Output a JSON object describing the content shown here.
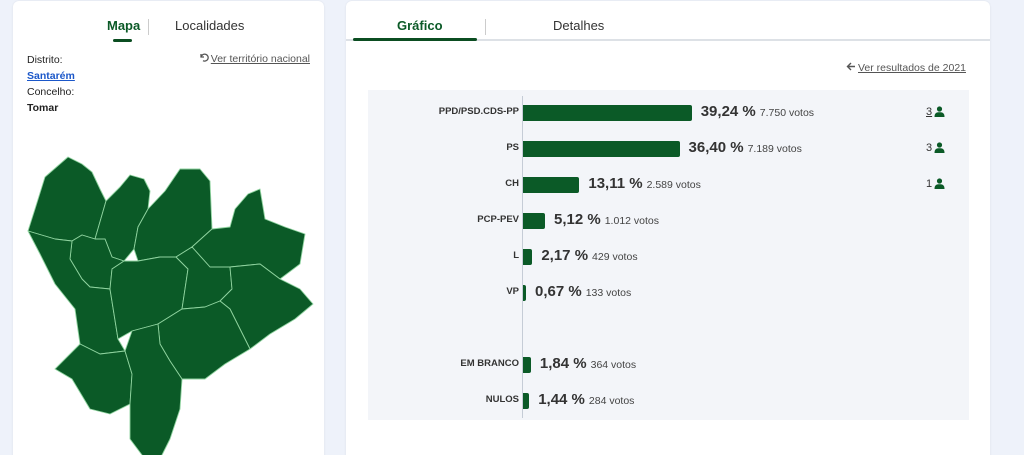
{
  "left_panel": {
    "tabs": [
      {
        "label": "Mapa",
        "active": true
      },
      {
        "label": "Localidades",
        "active": false
      }
    ],
    "info": {
      "district_label": "Distrito:",
      "district_value": "Santarém",
      "municipality_label": "Concelho:",
      "municipality_value": "Tomar"
    },
    "national_link": {
      "icon": "undo-icon",
      "label": "Ver território nacional"
    },
    "map": {
      "fill": "#0b5a27",
      "border": "#8fd39f",
      "region": "Tomar"
    }
  },
  "right_panel": {
    "tabs": [
      {
        "label": "Gráfico",
        "active": true
      },
      {
        "label": "Detalhes",
        "active": false
      }
    ],
    "back_link": {
      "icon": "arrow-left-icon",
      "label": "Ver resultados de 2021"
    },
    "colors": {
      "bar": "#0b5a27",
      "accent": "#0b4d21",
      "chart_bg": "#f3f5f9"
    }
  },
  "chart_data": {
    "type": "bar",
    "orientation": "horizontal",
    "categories": [
      "PPD/PSD.CDS-PP",
      "PS",
      "CH",
      "PCP-PEV",
      "L",
      "VP",
      "EM BRANCO",
      "NULOS"
    ],
    "values": [
      39.24,
      36.4,
      13.11,
      5.12,
      2.17,
      0.67,
      1.84,
      1.44
    ],
    "rows": [
      {
        "party": "PPD/PSD.CDS-PP",
        "pct": 39.24,
        "pct_label": "39,24 %",
        "votes_label": "7.750 votos",
        "seats": "3",
        "seats_link": true
      },
      {
        "party": "PS",
        "pct": 36.4,
        "pct_label": "36,40 %",
        "votes_label": "7.189 votos",
        "seats": "3",
        "seats_link": false
      },
      {
        "party": "CH",
        "pct": 13.11,
        "pct_label": "13,11 %",
        "votes_label": "2.589 votos",
        "seats": "1",
        "seats_link": false
      },
      {
        "party": "PCP-PEV",
        "pct": 5.12,
        "pct_label": "5,12 %",
        "votes_label": "1.012 votos",
        "seats": null
      },
      {
        "party": "L",
        "pct": 2.17,
        "pct_label": "2,17 %",
        "votes_label": "429 votos",
        "seats": null
      },
      {
        "party": "VP",
        "pct": 0.67,
        "pct_label": "0,67 %",
        "votes_label": "133 votos",
        "seats": null
      },
      {
        "party": "EM BRANCO",
        "pct": 1.84,
        "pct_label": "1,84 %",
        "votes_label": "364 votos",
        "seats": null
      },
      {
        "party": "NULOS",
        "pct": 1.44,
        "pct_label": "1,44 %",
        "votes_label": "284 votos",
        "seats": null
      }
    ],
    "title": "",
    "xlabel": "",
    "ylabel": "",
    "unit": "%",
    "grid": false,
    "legend": "none"
  }
}
